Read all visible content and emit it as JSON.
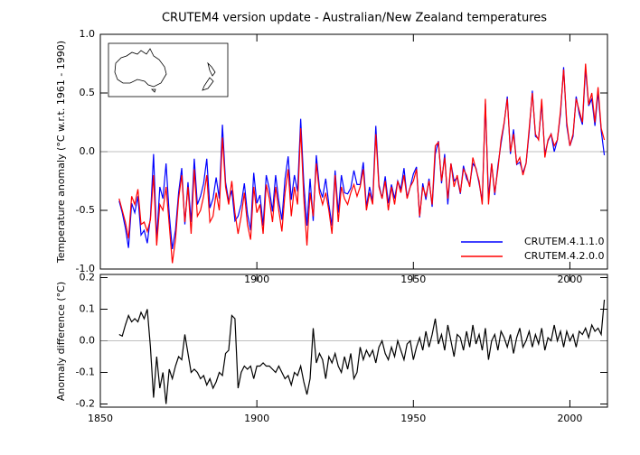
{
  "chart_data": [
    {
      "type": "line",
      "title": "CRUTEM4 version update - Australian/New Zealand temperatures",
      "y_label": "Temperature anomaly (°C w.r.t. 1961 - 1990)",
      "x": [
        1856,
        1857,
        1858,
        1859,
        1860,
        1861,
        1862,
        1863,
        1864,
        1865,
        1866,
        1867,
        1868,
        1869,
        1870,
        1871,
        1872,
        1873,
        1874,
        1875,
        1876,
        1877,
        1878,
        1879,
        1880,
        1881,
        1882,
        1883,
        1884,
        1885,
        1886,
        1887,
        1888,
        1889,
        1890,
        1891,
        1892,
        1893,
        1894,
        1895,
        1896,
        1897,
        1898,
        1899,
        1900,
        1901,
        1902,
        1903,
        1904,
        1905,
        1906,
        1907,
        1908,
        1909,
        1910,
        1911,
        1912,
        1913,
        1914,
        1915,
        1916,
        1917,
        1918,
        1919,
        1920,
        1921,
        1922,
        1923,
        1924,
        1925,
        1926,
        1927,
        1928,
        1929,
        1930,
        1931,
        1932,
        1933,
        1934,
        1935,
        1936,
        1937,
        1938,
        1939,
        1940,
        1941,
        1942,
        1943,
        1944,
        1945,
        1946,
        1947,
        1948,
        1949,
        1950,
        1951,
        1952,
        1953,
        1954,
        1955,
        1956,
        1957,
        1958,
        1959,
        1960,
        1961,
        1962,
        1963,
        1964,
        1965,
        1966,
        1967,
        1968,
        1969,
        1970,
        1971,
        1972,
        1973,
        1974,
        1975,
        1976,
        1977,
        1978,
        1979,
        1980,
        1981,
        1982,
        1983,
        1984,
        1985,
        1986,
        1987,
        1988,
        1989,
        1990,
        1991,
        1992,
        1993,
        1994,
        1995,
        1996,
        1997,
        1998,
        1999,
        2000,
        2001,
        2002,
        2003,
        2004,
        2005,
        2006,
        2007,
        2008,
        2009,
        2010,
        2011
      ],
      "series": [
        {
          "name": "CRUTEM.4.1.1.0",
          "color": "#0000ff",
          "values": [
            -0.42,
            -0.52,
            -0.65,
            -0.82,
            -0.44,
            -0.52,
            -0.38,
            -0.71,
            -0.67,
            -0.78,
            -0.56,
            -0.02,
            -0.75,
            -0.3,
            -0.4,
            -0.1,
            -0.53,
            -0.83,
            -0.67,
            -0.35,
            -0.14,
            -0.62,
            -0.26,
            -0.6,
            -0.06,
            -0.45,
            -0.38,
            -0.27,
            -0.06,
            -0.48,
            -0.4,
            -0.22,
            -0.4,
            0.23,
            -0.26,
            -0.42,
            -0.33,
            -0.59,
            -0.55,
            -0.45,
            -0.27,
            -0.53,
            -0.67,
            -0.18,
            -0.44,
            -0.37,
            -0.63,
            -0.2,
            -0.32,
            -0.51,
            -0.2,
            -0.42,
            -0.58,
            -0.23,
            -0.04,
            -0.41,
            -0.2,
            -0.34,
            0.28,
            -0.27,
            -0.63,
            -0.23,
            -0.59,
            -0.03,
            -0.31,
            -0.39,
            -0.23,
            -0.45,
            -0.63,
            -0.16,
            -0.52,
            -0.2,
            -0.35,
            -0.36,
            -0.31,
            -0.16,
            -0.28,
            -0.28,
            -0.09,
            -0.47,
            -0.3,
            -0.42,
            0.22,
            -0.28,
            -0.4,
            -0.21,
            -0.44,
            -0.28,
            -0.4,
            -0.25,
            -0.32,
            -0.14,
            -0.39,
            -0.3,
            -0.19,
            -0.13,
            -0.56,
            -0.27,
            -0.41,
            -0.23,
            -0.47,
            -0.02,
            0.09,
            -0.27,
            -0.02,
            -0.45,
            -0.1,
            -0.25,
            -0.22,
            -0.36,
            -0.12,
            -0.23,
            -0.28,
            -0.1,
            -0.14,
            -0.27,
            -0.42,
            0.41,
            -0.39,
            -0.1,
            -0.37,
            -0.12,
            0.07,
            0.24,
            0.47,
            -0.02,
            0.19,
            -0.11,
            -0.09,
            -0.18,
            -0.1,
            0.17,
            0.52,
            0.13,
            0.11,
            0.41,
            -0.02,
            0.09,
            0.15,
            0.0,
            0.1,
            0.32,
            0.72,
            0.22,
            0.05,
            0.13,
            0.47,
            0.32,
            0.23,
            0.71,
            0.39,
            0.45,
            0.22,
            0.51,
            0.18,
            -0.03
          ]
        },
        {
          "name": "CRUTEM.4.2.0.0",
          "color": "#ff0000",
          "values": [
            -0.4,
            -0.5,
            -0.6,
            -0.74,
            -0.38,
            -0.45,
            -0.32,
            -0.62,
            -0.6,
            -0.68,
            -0.58,
            -0.2,
            -0.8,
            -0.45,
            -0.5,
            -0.3,
            -0.62,
            -0.95,
            -0.75,
            -0.4,
            -0.2,
            -0.6,
            -0.3,
            -0.7,
            -0.15,
            -0.55,
            -0.5,
            -0.38,
            -0.2,
            -0.6,
            -0.55,
            -0.35,
            -0.5,
            0.12,
            -0.3,
            -0.45,
            -0.25,
            -0.52,
            -0.7,
            -0.55,
            -0.35,
            -0.62,
            -0.75,
            -0.3,
            -0.52,
            -0.45,
            -0.7,
            -0.28,
            -0.4,
            -0.6,
            -0.3,
            -0.5,
            -0.68,
            -0.35,
            -0.15,
            -0.55,
            -0.3,
            -0.45,
            0.2,
            -0.4,
            -0.8,
            -0.35,
            -0.55,
            -0.1,
            -0.35,
            -0.45,
            -0.35,
            -0.5,
            -0.7,
            -0.2,
            -0.6,
            -0.3,
            -0.4,
            -0.45,
            -0.35,
            -0.28,
            -0.38,
            -0.3,
            -0.15,
            -0.5,
            -0.35,
            -0.45,
            0.15,
            -0.3,
            -0.4,
            -0.25,
            -0.5,
            -0.3,
            -0.45,
            -0.25,
            -0.35,
            -0.2,
            -0.4,
            -0.3,
            -0.25,
            -0.15,
            -0.55,
            -0.3,
            -0.38,
            -0.25,
            -0.45,
            0.05,
            0.08,
            -0.25,
            -0.05,
            -0.4,
            -0.1,
            -0.3,
            -0.2,
            -0.35,
            -0.15,
            -0.2,
            -0.3,
            -0.05,
            -0.15,
            -0.25,
            -0.45,
            0.45,
            -0.45,
            -0.1,
            -0.35,
            -0.15,
            0.1,
            0.25,
            0.45,
            0.0,
            0.15,
            -0.1,
            -0.05,
            -0.2,
            -0.1,
            0.2,
            0.5,
            0.15,
            0.1,
            0.45,
            -0.05,
            0.1,
            0.15,
            0.05,
            0.1,
            0.35,
            0.7,
            0.25,
            0.05,
            0.15,
            0.45,
            0.35,
            0.25,
            0.75,
            0.4,
            0.5,
            0.25,
            0.55,
            0.2,
            0.1
          ]
        }
      ],
      "xlim": [
        1850,
        2012
      ],
      "xticks": [
        1900,
        1950,
        2000
      ],
      "ylim": [
        -1,
        1
      ],
      "yticks": [
        {
          "value": 1,
          "label": "1.0"
        },
        0.5,
        {
          "value": 0,
          "label": "0.0"
        },
        -0.5,
        {
          "value": -1,
          "label": "-1.0"
        }
      ],
      "legend": "lower right"
    },
    {
      "type": "line",
      "y_label": "Anomaly difference (°C)",
      "color": "#000000",
      "x": [
        1856,
        1857,
        1858,
        1859,
        1860,
        1861,
        1862,
        1863,
        1864,
        1865,
        1866,
        1867,
        1868,
        1869,
        1870,
        1871,
        1872,
        1873,
        1874,
        1875,
        1876,
        1877,
        1878,
        1879,
        1880,
        1881,
        1882,
        1883,
        1884,
        1885,
        1886,
        1887,
        1888,
        1889,
        1890,
        1891,
        1892,
        1893,
        1894,
        1895,
        1896,
        1897,
        1898,
        1899,
        1900,
        1901,
        1902,
        1903,
        1904,
        1905,
        1906,
        1907,
        1908,
        1909,
        1910,
        1911,
        1912,
        1913,
        1914,
        1915,
        1916,
        1917,
        1918,
        1919,
        1920,
        1921,
        1922,
        1923,
        1924,
        1925,
        1926,
        1927,
        1928,
        1929,
        1930,
        1931,
        1932,
        1933,
        1934,
        1935,
        1936,
        1937,
        1938,
        1939,
        1940,
        1941,
        1942,
        1943,
        1944,
        1945,
        1946,
        1947,
        1948,
        1949,
        1950,
        1951,
        1952,
        1953,
        1954,
        1955,
        1956,
        1957,
        1958,
        1959,
        1960,
        1961,
        1962,
        1963,
        1964,
        1965,
        1966,
        1967,
        1968,
        1969,
        1970,
        1971,
        1972,
        1973,
        1974,
        1975,
        1976,
        1977,
        1978,
        1979,
        1980,
        1981,
        1982,
        1983,
        1984,
        1985,
        1986,
        1987,
        1988,
        1989,
        1990,
        1991,
        1992,
        1993,
        1994,
        1995,
        1996,
        1997,
        1998,
        1999,
        2000,
        2001,
        2002,
        2003,
        2004,
        2005,
        2006,
        2007,
        2008,
        2009,
        2010,
        2011
      ],
      "values": [
        0.02,
        0.015,
        0.05,
        0.08,
        0.06,
        0.07,
        0.06,
        0.09,
        0.07,
        0.1,
        -0.02,
        -0.18,
        -0.05,
        -0.15,
        -0.1,
        -0.2,
        -0.09,
        -0.12,
        -0.08,
        -0.05,
        -0.06,
        0.02,
        -0.04,
        -0.1,
        -0.09,
        -0.1,
        -0.12,
        -0.11,
        -0.14,
        -0.12,
        -0.15,
        -0.13,
        -0.1,
        -0.11,
        -0.04,
        -0.03,
        0.08,
        0.07,
        -0.15,
        -0.1,
        -0.08,
        -0.09,
        -0.08,
        -0.12,
        -0.08,
        -0.08,
        -0.07,
        -0.08,
        -0.08,
        -0.09,
        -0.1,
        -0.08,
        -0.1,
        -0.12,
        -0.11,
        -0.14,
        -0.1,
        -0.11,
        -0.08,
        -0.13,
        -0.17,
        -0.12,
        0.04,
        -0.07,
        -0.04,
        -0.06,
        -0.12,
        -0.05,
        -0.07,
        -0.04,
        -0.08,
        -0.1,
        -0.05,
        -0.09,
        -0.04,
        -0.12,
        -0.1,
        -0.02,
        -0.06,
        -0.03,
        -0.05,
        -0.03,
        -0.07,
        -0.02,
        0.0,
        -0.04,
        -0.06,
        -0.02,
        -0.05,
        0.0,
        -0.03,
        -0.06,
        -0.01,
        0.0,
        -0.06,
        -0.02,
        0.01,
        -0.03,
        0.03,
        -0.02,
        0.02,
        0.07,
        -0.01,
        0.02,
        -0.03,
        0.05,
        0.0,
        -0.05,
        0.02,
        0.01,
        -0.03,
        0.03,
        -0.02,
        0.05,
        -0.01,
        0.02,
        -0.03,
        0.04,
        -0.06,
        0.0,
        0.02,
        -0.03,
        0.03,
        0.01,
        -0.02,
        0.02,
        -0.04,
        0.01,
        0.04,
        -0.02,
        0.0,
        0.03,
        -0.02,
        0.02,
        -0.01,
        0.04,
        -0.03,
        0.01,
        0.0,
        0.05,
        0.0,
        0.03,
        -0.02,
        0.03,
        0.0,
        0.02,
        -0.02,
        0.03,
        0.02,
        0.04,
        0.01,
        0.05,
        0.03,
        0.04,
        0.02,
        0.13
      ],
      "xlim": [
        1850,
        2012
      ],
      "xticks": [
        1850,
        1900,
        1950,
        2000
      ],
      "ylim": [
        -0.21,
        0.21
      ],
      "yticks": [
        0.2,
        0.1,
        {
          "value": 0,
          "label": "0.0"
        },
        -0.1,
        -0.2
      ]
    }
  ]
}
